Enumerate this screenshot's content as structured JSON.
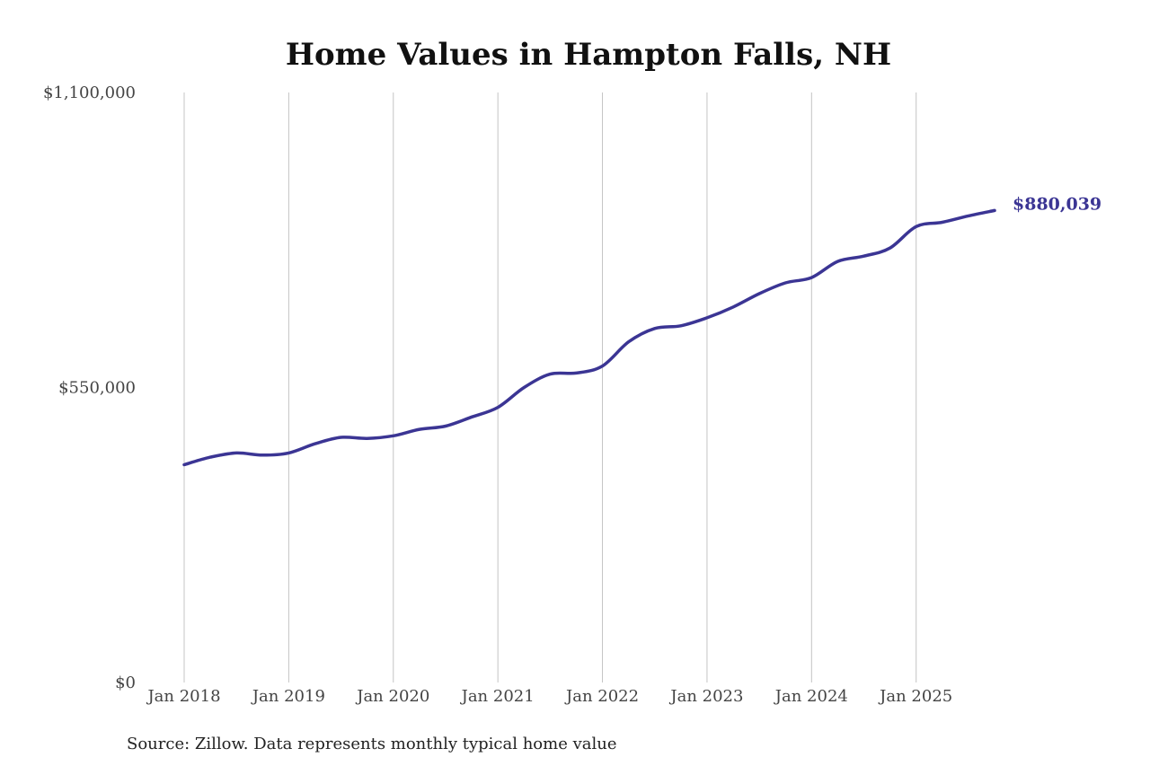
{
  "chart_data": {
    "type": "line",
    "title": "Home Values in Hampton Falls, NH",
    "source": "Source: Zillow. Data represents monthly typical home value",
    "ylim": [
      0,
      1100000
    ],
    "yticks": [
      {
        "value": 0,
        "label": "$0"
      },
      {
        "value": 550000,
        "label": "$550,000"
      },
      {
        "value": 1100000,
        "label": "$1,100,000"
      }
    ],
    "xlim": [
      "2018-01",
      "2025-10"
    ],
    "xticks": [
      {
        "date": "2018-01",
        "label": "Jan 2018"
      },
      {
        "date": "2019-01",
        "label": "Jan 2019"
      },
      {
        "date": "2020-01",
        "label": "Jan 2020"
      },
      {
        "date": "2021-01",
        "label": "Jan 2021"
      },
      {
        "date": "2022-01",
        "label": "Jan 2022"
      },
      {
        "date": "2023-01",
        "label": "Jan 2023"
      },
      {
        "date": "2024-01",
        "label": "Jan 2024"
      },
      {
        "date": "2025-01",
        "label": "Jan 2025"
      }
    ],
    "grid": {
      "vertical": true,
      "horizontal": false
    },
    "line_color": "#3b3594",
    "end_label": "$880,039",
    "series": [
      {
        "x": [
          "2018-01",
          "2018-04",
          "2018-07",
          "2018-10",
          "2019-01",
          "2019-04",
          "2019-07",
          "2019-10",
          "2020-01",
          "2020-04",
          "2020-07",
          "2020-10",
          "2021-01",
          "2021-04",
          "2021-07",
          "2021-10",
          "2022-01",
          "2022-04",
          "2022-07",
          "2022-10",
          "2023-01",
          "2023-04",
          "2023-07",
          "2023-10",
          "2024-01",
          "2024-04",
          "2024-07",
          "2024-10",
          "2025-01",
          "2025-04",
          "2025-07",
          "2025-10"
        ],
        "values": [
          406000,
          420000,
          428000,
          424000,
          428000,
          445000,
          457000,
          455000,
          460000,
          472000,
          478000,
          495000,
          513000,
          550000,
          575000,
          577000,
          590000,
          635000,
          660000,
          665000,
          680000,
          700000,
          725000,
          745000,
          755000,
          785000,
          795000,
          810000,
          850000,
          858000,
          870000,
          880039
        ]
      }
    ]
  }
}
